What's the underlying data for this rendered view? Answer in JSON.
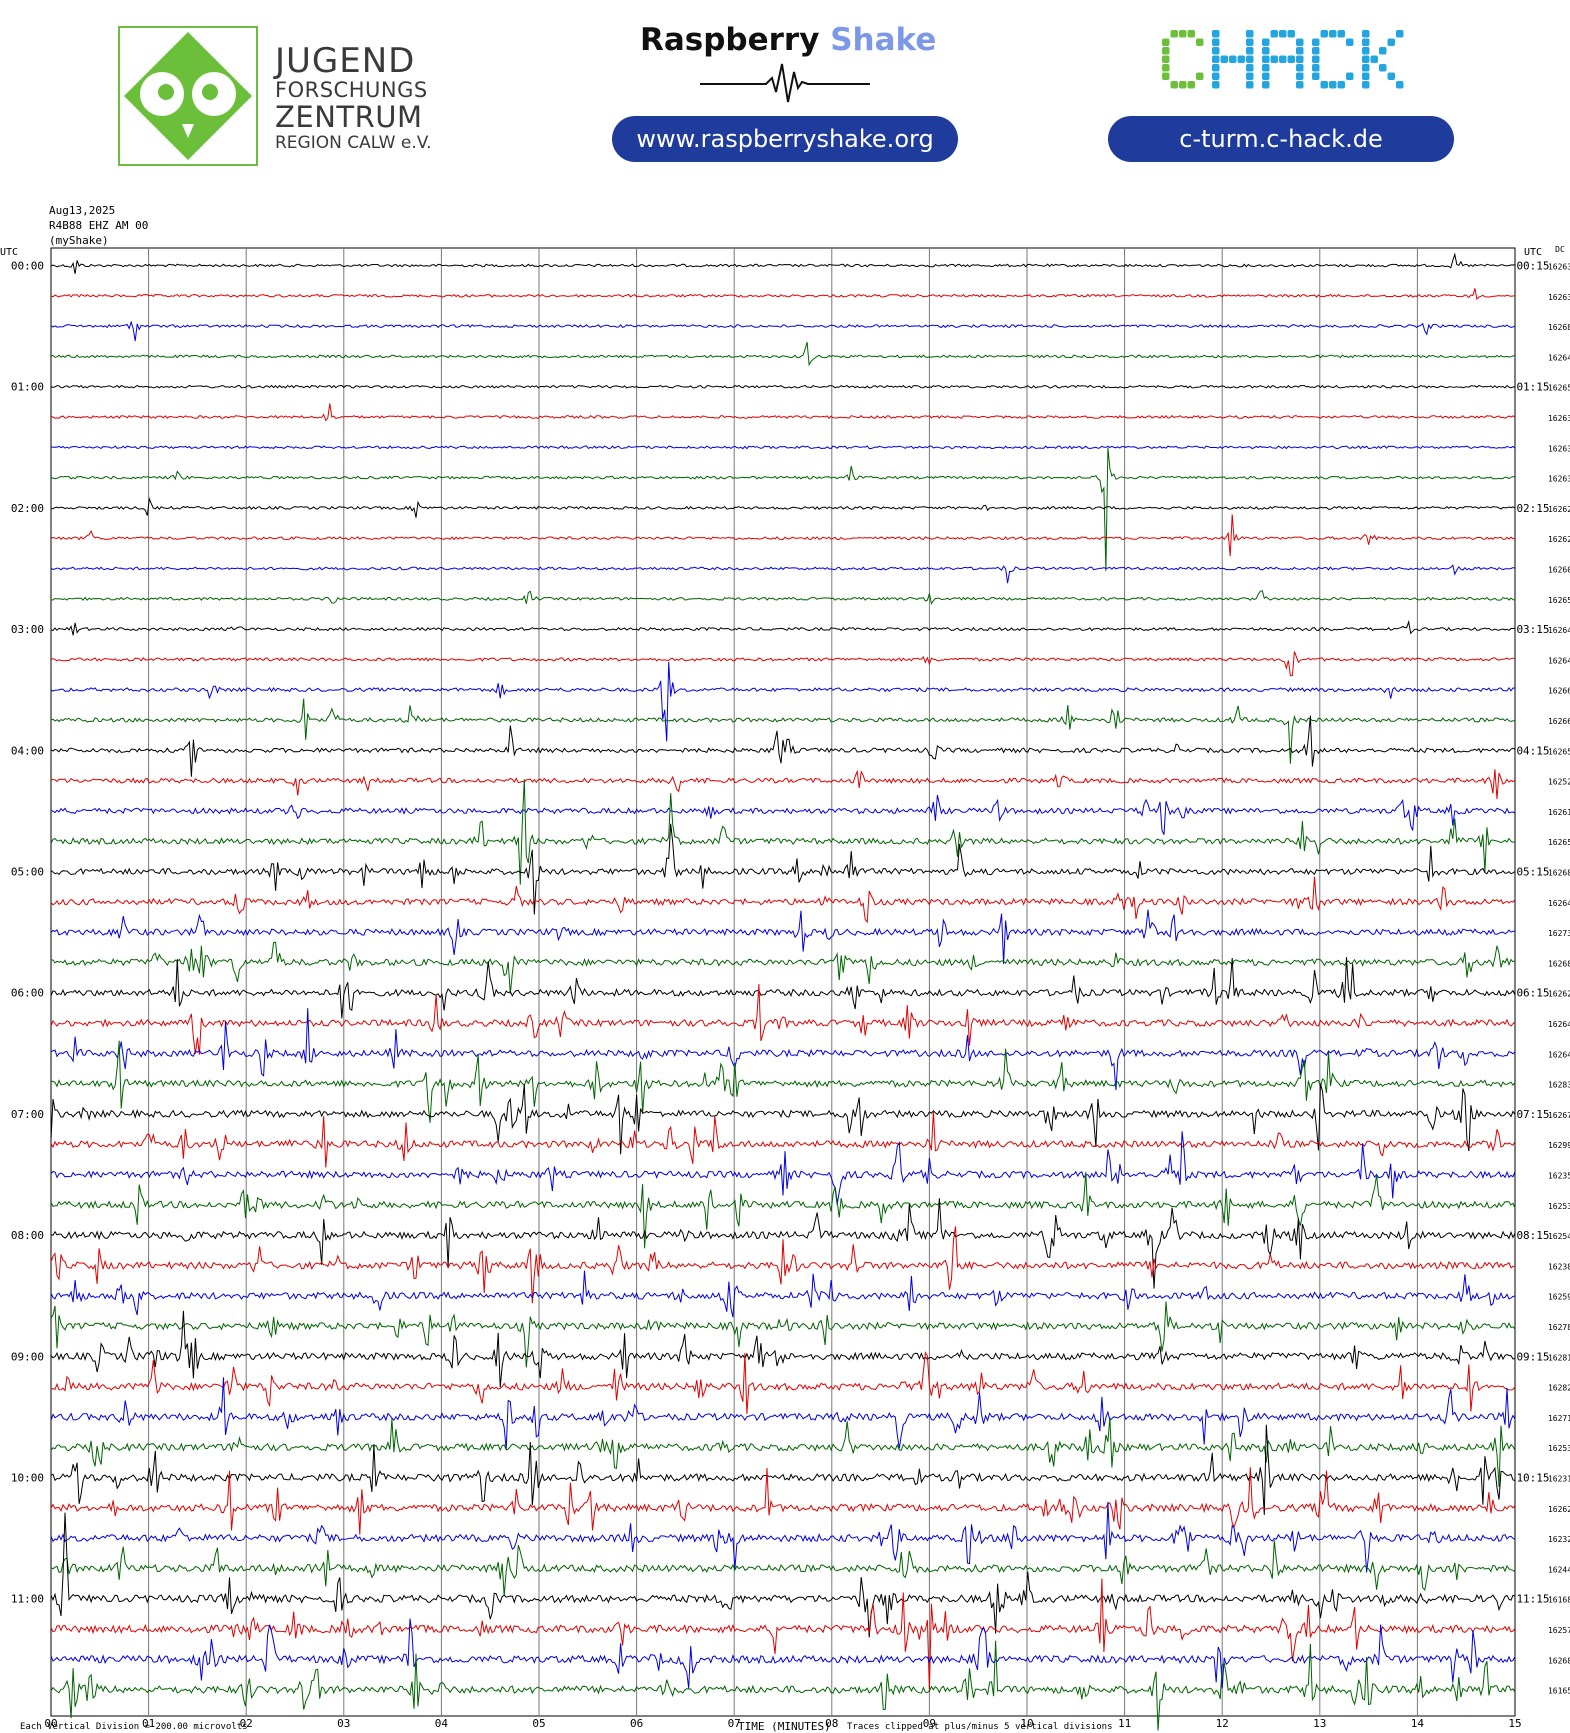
{
  "header": {
    "jfz": {
      "line1": "JUGEND",
      "line2": "FORSCHUNGS",
      "line3": "ZENTRUM",
      "line4": "REGION CALW e.V.",
      "color": "#6cbf3a"
    },
    "raspberry_shake": {
      "word1": "Raspberry",
      "word2": "Shake",
      "url": "www.raspberryshake.org"
    },
    "chack": {
      "logo_text": "CHACK",
      "url": "c-turm.c-hack.de",
      "colors": [
        "#6cbf3a",
        "#23a6e0"
      ]
    }
  },
  "station": {
    "date": "Aug13,2025",
    "channel": "R4B88 EHZ AM 00",
    "name": "(myShake)"
  },
  "footer": {
    "scale": "Each Vertical Division = 200.00 microvolts",
    "xlabel": "TIME (MINUTES)",
    "clip_note": "Traces clipped at plus/minus 5 vertical divisions"
  },
  "chart_data": {
    "type": "line",
    "xlabel": "TIME (MINUTES)",
    "xlim": [
      0,
      15
    ],
    "x_ticks": [
      "00",
      "01",
      "02",
      "03",
      "04",
      "05",
      "06",
      "07",
      "08",
      "09",
      "10",
      "11",
      "12",
      "13",
      "14",
      "15"
    ],
    "left_axis_label": "UTC",
    "right_axis_label": "UTC",
    "dc_label": "DC",
    "row_minutes": 15,
    "series_colors": [
      "#000000",
      "#e00000",
      "#0000e0",
      "#006400"
    ],
    "left_labels": [
      "00:00",
      "",
      "",
      "",
      "01:00",
      "",
      "",
      "",
      "02:00",
      "",
      "",
      "",
      "03:00",
      "",
      "",
      "",
      "04:00",
      "",
      "",
      "",
      "05:00",
      "",
      "",
      "",
      "06:00",
      "",
      "",
      "",
      "07:00",
      "",
      "",
      "",
      "08:00",
      "",
      "",
      "",
      "09:00",
      "",
      "",
      "",
      "10:00",
      "",
      "",
      "",
      "11:00",
      "",
      "",
      ""
    ],
    "right_labels": [
      "00:15",
      "",
      "",
      "",
      "01:15",
      "",
      "",
      "",
      "02:15",
      "",
      "",
      "",
      "03:15",
      "",
      "",
      "",
      "04:15",
      "",
      "",
      "",
      "05:15",
      "",
      "",
      "",
      "06:15",
      "",
      "",
      "",
      "07:15",
      "",
      "",
      "",
      "08:15",
      "",
      "",
      "",
      "09:15",
      "",
      "",
      "",
      "10:15",
      "",
      "",
      "",
      "11:15",
      "",
      "",
      ""
    ],
    "dc_values": [
      "16263",
      "16263",
      "16268",
      "16264",
      "16265",
      "16263",
      "16263",
      "16263",
      "16262",
      "16262",
      "16260",
      "16265",
      "16264",
      "16264",
      "16266",
      "16266",
      "16265",
      "16252",
      "16261",
      "16265",
      "16268",
      "16264",
      "16273",
      "16268",
      "16262",
      "16264",
      "16264",
      "16283",
      "16267",
      "16299",
      "16235",
      "16253",
      "16254",
      "16238",
      "16259",
      "16278",
      "16281",
      "16282",
      "16271",
      "16253",
      "16231",
      "16262",
      "16232",
      "16244",
      "16168",
      "16257",
      "16268",
      "16165"
    ],
    "activity_level": [
      0.12,
      0.12,
      0.14,
      0.12,
      0.12,
      0.14,
      0.12,
      0.13,
      0.15,
      0.15,
      0.15,
      0.15,
      0.2,
      0.25,
      0.35,
      0.45,
      0.55,
      0.6,
      0.75,
      0.85,
      0.9,
      0.9,
      0.95,
      1.0,
      1.0,
      1.0,
      1.0,
      1.0,
      1.05,
      1.05,
      1.05,
      1.05,
      1.1,
      1.1,
      1.05,
      1.05,
      1.1,
      1.1,
      1.1,
      1.1,
      1.15,
      1.15,
      1.15,
      1.15,
      1.2,
      1.2,
      1.2,
      1.2
    ],
    "events": [
      {
        "row": 0,
        "minute": 0.25,
        "amp": 0.5
      },
      {
        "row": 0,
        "minute": 14.4,
        "amp": 0.7
      },
      {
        "row": 1,
        "minute": 14.6,
        "amp": 0.4
      },
      {
        "row": 2,
        "minute": 0.85,
        "amp": 0.9
      },
      {
        "row": 2,
        "minute": 14.1,
        "amp": 0.4
      },
      {
        "row": 3,
        "minute": 7.75,
        "amp": 1.0
      },
      {
        "row": 5,
        "minute": 2.85,
        "amp": 0.7
      },
      {
        "row": 7,
        "minute": 1.3,
        "amp": 0.4
      },
      {
        "row": 7,
        "minute": 8.2,
        "amp": 0.4
      },
      {
        "row": 7,
        "minute": 10.8,
        "amp": 4.5
      },
      {
        "row": 8,
        "minute": 1.0,
        "amp": 0.4
      },
      {
        "row": 8,
        "minute": 3.75,
        "amp": 0.5
      },
      {
        "row": 8,
        "minute": 9.6,
        "amp": 0.3
      },
      {
        "row": 9,
        "minute": 0.4,
        "amp": 0.4
      },
      {
        "row": 9,
        "minute": 12.1,
        "amp": 1.3
      },
      {
        "row": 9,
        "minute": 13.5,
        "amp": 0.9
      },
      {
        "row": 10,
        "minute": 9.8,
        "amp": 0.5
      },
      {
        "row": 10,
        "minute": 14.4,
        "amp": 0.5
      },
      {
        "row": 11,
        "minute": 2.9,
        "amp": 0.4
      },
      {
        "row": 11,
        "minute": 4.9,
        "amp": 0.5
      },
      {
        "row": 11,
        "minute": 9.0,
        "amp": 0.4
      },
      {
        "row": 11,
        "minute": 12.4,
        "amp": 0.6
      },
      {
        "row": 12,
        "minute": 1.9,
        "amp": 0.3
      },
      {
        "row": 12,
        "minute": 13.9,
        "amp": 0.4
      },
      {
        "row": 13,
        "minute": 12.7,
        "amp": 1.8
      },
      {
        "row": 14,
        "minute": 6.3,
        "amp": 4.5
      },
      {
        "row": 14,
        "minute": 13.7,
        "amp": 0.8
      },
      {
        "row": 15,
        "minute": 2.6,
        "amp": 1.2
      },
      {
        "row": 15,
        "minute": 3.7,
        "amp": 1.2
      },
      {
        "row": 15,
        "minute": 10.9,
        "amp": 1.2
      },
      {
        "row": 15,
        "minute": 12.7,
        "amp": 1.5
      },
      {
        "row": 16,
        "minute": 1.45,
        "amp": 1.4
      },
      {
        "row": 16,
        "minute": 7.45,
        "amp": 1.3
      },
      {
        "row": 16,
        "minute": 12.9,
        "amp": 1.6
      },
      {
        "row": 17,
        "minute": 6.4,
        "amp": 1.2
      },
      {
        "row": 17,
        "minute": 14.8,
        "amp": 1.2
      },
      {
        "row": 18,
        "minute": 2.5,
        "amp": 1.0
      },
      {
        "row": 18,
        "minute": 13.95,
        "amp": 1.2
      },
      {
        "row": 19,
        "minute": 4.85,
        "amp": 1.5
      },
      {
        "row": 19,
        "minute": 6.35,
        "amp": 1.8
      },
      {
        "row": 20,
        "minute": 3.8,
        "amp": 1.4
      },
      {
        "row": 20,
        "minute": 4.95,
        "amp": 2.0
      },
      {
        "row": 20,
        "minute": 6.35,
        "amp": 2.5
      },
      {
        "row": 21,
        "minute": 12.95,
        "amp": 1.6
      },
      {
        "row": 23,
        "minute": 1.55,
        "amp": 1.5
      },
      {
        "row": 23,
        "minute": 8.4,
        "amp": 1.4
      },
      {
        "row": 24,
        "minute": 1.3,
        "amp": 1.5
      },
      {
        "row": 24,
        "minute": 12.1,
        "amp": 1.2
      },
      {
        "row": 25,
        "minute": 1.5,
        "amp": 1.3
      },
      {
        "row": 27,
        "minute": 6.05,
        "amp": 2.0
      },
      {
        "row": 27,
        "minute": 13.1,
        "amp": 1.6
      },
      {
        "row": 28,
        "minute": 4.85,
        "amp": 1.5
      },
      {
        "row": 28,
        "minute": 13.0,
        "amp": 2.2
      },
      {
        "row": 32,
        "minute": 9.1,
        "amp": 1.6
      },
      {
        "row": 32,
        "minute": 11.5,
        "amp": 1.6
      },
      {
        "row": 33,
        "minute": 5.8,
        "amp": 1.8
      },
      {
        "row": 34,
        "minute": 8.8,
        "amp": 1.5
      },
      {
        "row": 34,
        "minute": 14.5,
        "amp": 1.2
      },
      {
        "row": 37,
        "minute": 5.8,
        "amp": 1.8
      },
      {
        "row": 40,
        "minute": 4.9,
        "amp": 1.4
      },
      {
        "row": 41,
        "minute": 13.6,
        "amp": 1.6
      },
      {
        "row": 44,
        "minute": 0.15,
        "amp": 2.2
      },
      {
        "row": 45,
        "minute": 9.0,
        "amp": 2.0
      },
      {
        "row": 47,
        "minute": 2.6,
        "amp": 2.5
      },
      {
        "row": 47,
        "minute": 12.9,
        "amp": 2.0
      }
    ]
  }
}
